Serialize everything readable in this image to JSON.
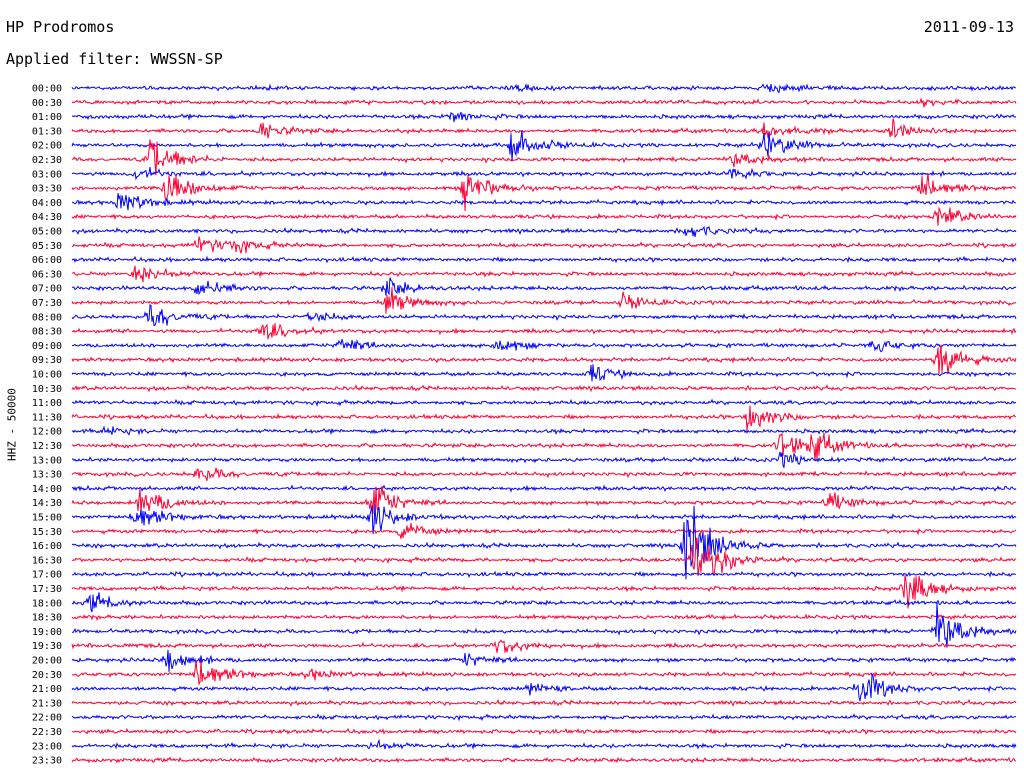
{
  "header": {
    "station": "HP Prodromos",
    "filter": "Applied filter: WWSSN-SP",
    "date": "2011-09-13",
    "channel": "HHZ - 50000"
  },
  "colors": {
    "even_row": "#0000ff",
    "odd_row": "#ff0033"
  },
  "chart_data": {
    "type": "line",
    "title": "HP Prodromos",
    "subtitle": "Applied filter: WWSSN-SP",
    "ylabel": "HHZ - 50000",
    "row_labels": [
      "00:00",
      "00:30",
      "01:00",
      "01:30",
      "02:00",
      "02:30",
      "03:00",
      "03:30",
      "04:00",
      "04:30",
      "05:00",
      "05:30",
      "06:00",
      "06:30",
      "07:00",
      "07:30",
      "08:00",
      "08:30",
      "09:00",
      "09:30",
      "10:00",
      "10:30",
      "11:00",
      "11:30",
      "12:00",
      "12:30",
      "13:00",
      "13:30",
      "14:00",
      "14:30",
      "15:00",
      "15:30",
      "16:00",
      "16:30",
      "17:00",
      "17:30",
      "18:00",
      "18:30",
      "19:00",
      "19:30",
      "20:00",
      "20:30",
      "21:00",
      "21:30",
      "22:00",
      "22:30",
      "23:00",
      "23:30"
    ],
    "row_minutes": 30,
    "events": [
      {
        "row": 0,
        "minute": 14,
        "amp": 0.25
      },
      {
        "row": 0,
        "minute": 22,
        "amp": 0.3
      },
      {
        "row": 1,
        "minute": 27,
        "amp": 0.2
      },
      {
        "row": 2,
        "minute": 12,
        "amp": 0.4
      },
      {
        "row": 3,
        "minute": 6,
        "amp": 0.6
      },
      {
        "row": 3,
        "minute": 22,
        "amp": 0.6
      },
      {
        "row": 3,
        "minute": 26,
        "amp": 0.7
      },
      {
        "row": 4,
        "minute": 14,
        "amp": 1.2
      },
      {
        "row": 4,
        "minute": 22,
        "amp": 1.0
      },
      {
        "row": 5,
        "minute": 2.5,
        "amp": 1.5
      },
      {
        "row": 5,
        "minute": 21,
        "amp": 0.5
      },
      {
        "row": 6,
        "minute": 2,
        "amp": 0.5
      },
      {
        "row": 6,
        "minute": 21,
        "amp": 0.4
      },
      {
        "row": 7,
        "minute": 3,
        "amp": 1.5
      },
      {
        "row": 7,
        "minute": 12.5,
        "amp": 1.6
      },
      {
        "row": 7,
        "minute": 27,
        "amp": 1.1
      },
      {
        "row": 8,
        "minute": 1.5,
        "amp": 0.9
      },
      {
        "row": 9,
        "minute": 27.5,
        "amp": 0.8
      },
      {
        "row": 10,
        "minute": 19.5,
        "amp": 0.5
      },
      {
        "row": 11,
        "minute": 4,
        "amp": 0.6
      },
      {
        "row": 11,
        "minute": 5,
        "amp": 0.5
      },
      {
        "row": 13,
        "minute": 2,
        "amp": 0.8
      },
      {
        "row": 14,
        "minute": 4,
        "amp": 0.7
      },
      {
        "row": 14,
        "minute": 10,
        "amp": 0.6
      },
      {
        "row": 15,
        "minute": 10,
        "amp": 0.9
      },
      {
        "row": 15,
        "minute": 17.5,
        "amp": 0.5
      },
      {
        "row": 16,
        "minute": 2.5,
        "amp": 0.9
      },
      {
        "row": 16,
        "minute": 7.5,
        "amp": 0.4
      },
      {
        "row": 17,
        "minute": 6,
        "amp": 0.8
      },
      {
        "row": 18,
        "minute": 8.5,
        "amp": 0.6
      },
      {
        "row": 18,
        "minute": 13.5,
        "amp": 0.6
      },
      {
        "row": 18,
        "minute": 25.5,
        "amp": 0.4
      },
      {
        "row": 19,
        "minute": 27.5,
        "amp": 1.4
      },
      {
        "row": 20,
        "minute": 16.5,
        "amp": 0.6
      },
      {
        "row": 23,
        "minute": 21.5,
        "amp": 1.2
      },
      {
        "row": 24,
        "minute": 1,
        "amp": 0.3
      },
      {
        "row": 25,
        "minute": 22.5,
        "amp": 0.9
      },
      {
        "row": 25,
        "minute": 23.5,
        "amp": 0.9
      },
      {
        "row": 26,
        "minute": 22.5,
        "amp": 0.5
      },
      {
        "row": 27,
        "minute": 4,
        "amp": 0.6
      },
      {
        "row": 29,
        "minute": 2.2,
        "amp": 1.2
      },
      {
        "row": 29,
        "minute": 9.5,
        "amp": 1.5
      },
      {
        "row": 29,
        "minute": 24,
        "amp": 0.7
      },
      {
        "row": 30,
        "minute": 2,
        "amp": 1.2
      },
      {
        "row": 30,
        "minute": 9.5,
        "amp": 1.2
      },
      {
        "row": 31,
        "minute": 10.5,
        "amp": 0.6
      },
      {
        "row": 32,
        "minute": 19.5,
        "amp": 3.5
      },
      {
        "row": 33,
        "minute": 19.8,
        "amp": 2.5
      },
      {
        "row": 35,
        "minute": 26.5,
        "amp": 1.4
      },
      {
        "row": 36,
        "minute": 0.6,
        "amp": 0.7
      },
      {
        "row": 38,
        "minute": 27.5,
        "amp": 1.8
      },
      {
        "row": 39,
        "minute": 13.5,
        "amp": 0.6
      },
      {
        "row": 40,
        "minute": 3,
        "amp": 0.9
      },
      {
        "row": 40,
        "minute": 12.5,
        "amp": 0.5
      },
      {
        "row": 41,
        "minute": 4,
        "amp": 1.5
      },
      {
        "row": 41,
        "minute": 7.5,
        "amp": 0.4
      },
      {
        "row": 42,
        "minute": 14.5,
        "amp": 0.4
      },
      {
        "row": 42,
        "minute": 25,
        "amp": 1.4
      },
      {
        "row": 46,
        "minute": 9.5,
        "amp": 0.3
      }
    ]
  }
}
